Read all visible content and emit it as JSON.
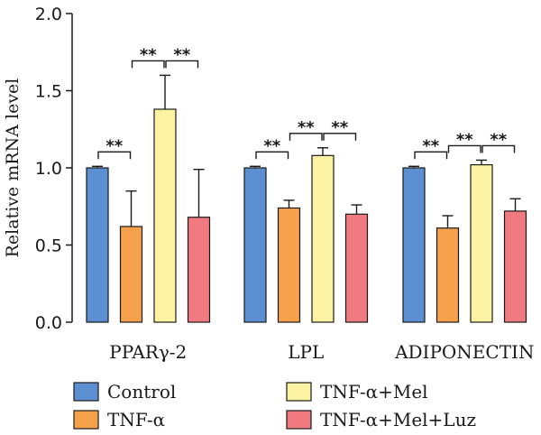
{
  "chart_data": {
    "type": "bar",
    "ylabel": "Relative mRNA level",
    "ylim": [
      0,
      2.0
    ],
    "yticks": [
      "0.0",
      "0.5",
      "1.0",
      "1.5",
      "2.0"
    ],
    "categories": [
      "PPARγ-2",
      "LPL",
      "ADIPONECTIN"
    ],
    "series": [
      {
        "name": "Control",
        "color": "#5b8fd1",
        "values": [
          1.0,
          1.0,
          1.0
        ],
        "errors": [
          0.01,
          0.01,
          0.01
        ]
      },
      {
        "name": "TNF-α",
        "color": "#f5a14b",
        "values": [
          0.62,
          0.74,
          0.61
        ],
        "errors": [
          0.23,
          0.05,
          0.08
        ]
      },
      {
        "name": "TNF-α+Mel",
        "color": "#fbf3a2",
        "values": [
          1.38,
          1.08,
          1.02
        ],
        "errors": [
          0.22,
          0.05,
          0.03
        ]
      },
      {
        "name": "TNF-α+Mel+Luz",
        "color": "#f07a7f",
        "values": [
          0.68,
          0.7,
          0.72
        ],
        "errors": [
          0.31,
          0.06,
          0.08
        ]
      }
    ],
    "significance": [
      {
        "group": 0,
        "from": 0,
        "to": 1,
        "label": "**"
      },
      {
        "group": 0,
        "from": 1,
        "to": 2,
        "label": "**"
      },
      {
        "group": 0,
        "from": 2,
        "to": 3,
        "label": "**"
      },
      {
        "group": 1,
        "from": 0,
        "to": 1,
        "label": "**"
      },
      {
        "group": 1,
        "from": 1,
        "to": 2,
        "label": "**"
      },
      {
        "group": 1,
        "from": 2,
        "to": 3,
        "label": "**"
      },
      {
        "group": 2,
        "from": 0,
        "to": 1,
        "label": "**"
      },
      {
        "group": 2,
        "from": 1,
        "to": 2,
        "label": "**"
      },
      {
        "group": 2,
        "from": 2,
        "to": 3,
        "label": "**"
      }
    ],
    "legend_position": "bottom"
  }
}
